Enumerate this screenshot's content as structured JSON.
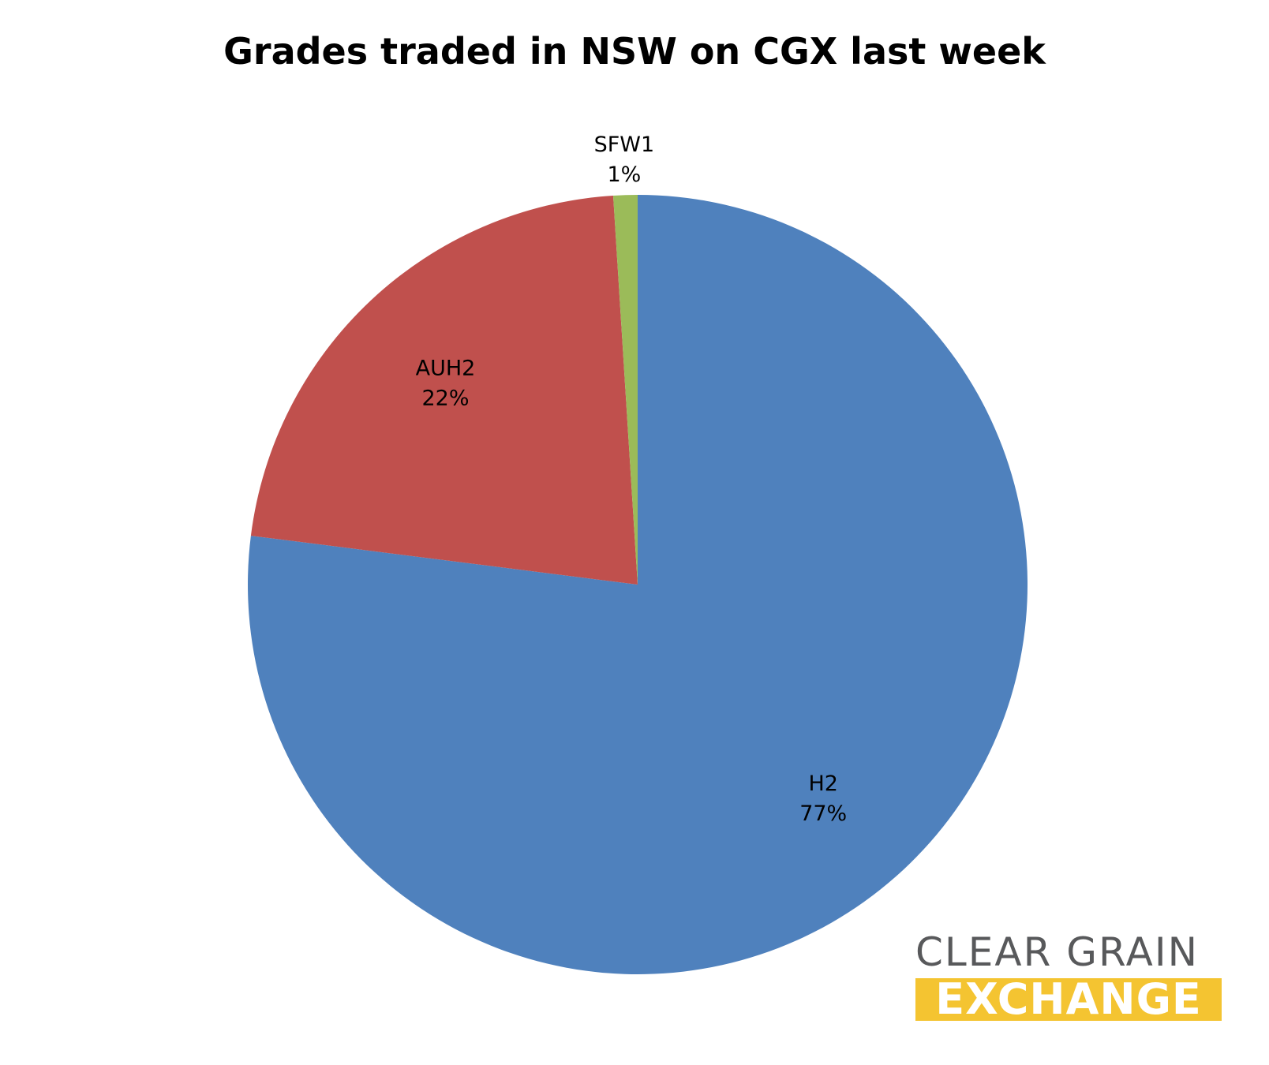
{
  "chart_data": {
    "type": "pie",
    "title": "Grades traded in NSW on CGX last week",
    "slices": [
      {
        "name": "H2",
        "value": 77,
        "label_value": "77%",
        "color": "#4f81bd"
      },
      {
        "name": "AUH2",
        "value": 22,
        "label_value": "22%",
        "color": "#c0504d"
      },
      {
        "name": "SFW1",
        "value": 1,
        "label_value": "1%",
        "color": "#9bbb59"
      }
    ],
    "start_angle": "12 o'clock",
    "direction": "clockwise",
    "legend": "none",
    "data_labels": "category name and percentage"
  },
  "logo": {
    "line1": "CLEAR GRAIN",
    "line2": "EXCHANGE",
    "colors": {
      "line1": "#58595b",
      "line2_bg": "#f4c431",
      "line2_text": "#ffffff"
    }
  }
}
